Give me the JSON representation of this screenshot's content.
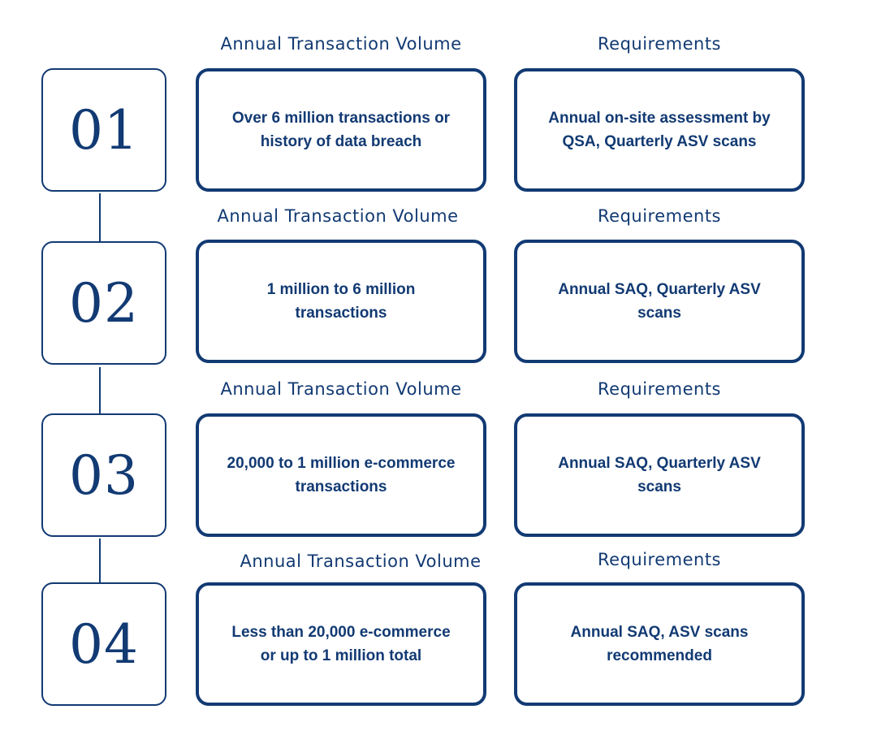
{
  "colors": {
    "primary": "#123a73",
    "background": "#ffffff"
  },
  "rows": [
    {
      "number": "01",
      "volume_header": "Annual Transaction Volume",
      "requirements_header": "Requirements",
      "volume": "Over 6 million transactions or history of data breach",
      "requirements": "Annual on-site assessment by QSA, Quarterly ASV scans"
    },
    {
      "number": "02",
      "volume_header": "Annual Transaction Volume",
      "requirements_header": "Requirements",
      "volume": "1 million to 6 million transactions",
      "requirements": "Annual SAQ, Quarterly ASV scans"
    },
    {
      "number": "03",
      "volume_header": "Annual Transaction Volume",
      "requirements_header": "Requirements",
      "volume": "20,000 to 1 million e-commerce transactions",
      "requirements": "Annual SAQ, Quarterly ASV scans"
    },
    {
      "number": "04",
      "volume_header": "Annual Transaction Volume",
      "requirements_header": "Requirements",
      "volume": "Less than 20,000 e-commerce or up to 1 million total",
      "requirements": "Annual SAQ, ASV scans recommended"
    }
  ]
}
